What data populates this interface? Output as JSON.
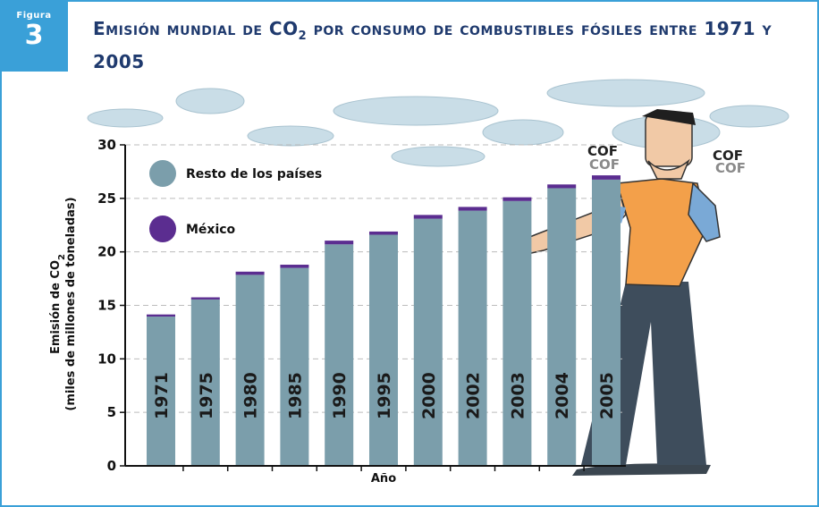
{
  "figure": {
    "label": "Figura",
    "number": "3"
  },
  "title": {
    "main": "Emisión mundial de CO",
    "sub": "2",
    "rest": " por consumo de combustibles fósiles entre 1971 y 2005"
  },
  "colors": {
    "rest": "#7b9eab",
    "mexico": "#5b2d90",
    "accent": "#3aa0d8",
    "title": "#1f3a6e"
  },
  "cof": [
    "COF",
    "COF",
    "COF",
    "COF"
  ],
  "chart_data": {
    "type": "bar",
    "stacked": true,
    "categories": [
      "1971",
      "1975",
      "1980",
      "1985",
      "1990",
      "1995",
      "2000",
      "2002",
      "2003",
      "2004",
      "2005"
    ],
    "series": [
      {
        "name": "Resto de los países",
        "values": [
          13.95,
          15.55,
          17.85,
          18.5,
          20.7,
          21.6,
          23.1,
          23.85,
          24.75,
          25.95,
          26.75
        ]
      },
      {
        "name": "México",
        "values": [
          0.2,
          0.2,
          0.3,
          0.3,
          0.35,
          0.3,
          0.35,
          0.35,
          0.35,
          0.35,
          0.4
        ]
      }
    ],
    "xlabel": "Año",
    "ylabel_line1": "Emisión de CO",
    "ylabel_sub": "2",
    "ylabel_line2": "(miles de millones de toneladas)",
    "ylim": [
      0,
      30
    ],
    "yticks": [
      "0",
      "5",
      "10",
      "15",
      "20",
      "25",
      "30"
    ],
    "grid": true,
    "legend_position": "top-left"
  }
}
